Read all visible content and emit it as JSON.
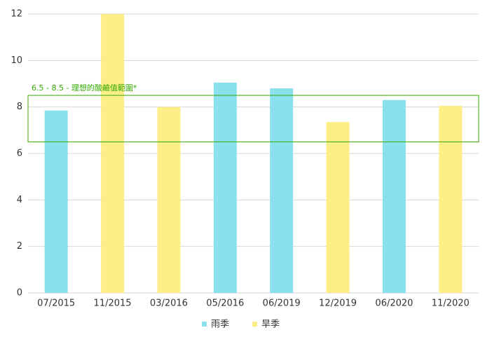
{
  "chart_data": {
    "type": "bar",
    "categories": [
      "07/2015",
      "11/2015",
      "03/2016",
      "05/2016",
      "06/2019",
      "12/2019",
      "06/2020",
      "11/2020"
    ],
    "series": [
      {
        "name": "雨季",
        "color": "#8ae0ed",
        "values": [
          7.85,
          null,
          null,
          9.05,
          8.8,
          null,
          8.3,
          null
        ]
      },
      {
        "name": "旱季",
        "color": "#fdee88",
        "values": [
          null,
          12,
          8.0,
          null,
          null,
          7.35,
          null,
          8.05
        ]
      }
    ],
    "ylim": [
      0,
      12
    ],
    "yticks": [
      0,
      2,
      4,
      6,
      8,
      10,
      12
    ],
    "grid": true,
    "band": [
      6.5,
      8.5
    ],
    "band_label": "6.5 - 8.5 - 理想的酸鹼值範圍*",
    "band_color": "#33aa00",
    "legend": "bottom"
  }
}
